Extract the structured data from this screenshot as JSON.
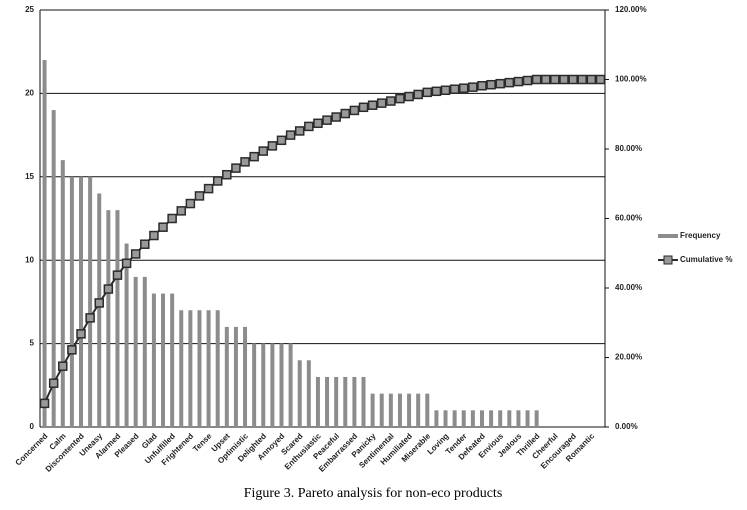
{
  "chart_data": {
    "type": "pareto",
    "caption": "Figure 3. Pareto analysis for non-eco products",
    "categories": [
      "Concerned",
      null,
      "Calm",
      null,
      "Discontented",
      null,
      "Uneasy",
      null,
      "Alarmed",
      null,
      "Pleased",
      null,
      "Glad",
      null,
      "Unfulfilled",
      null,
      "Frightened",
      null,
      "Tense",
      null,
      "Upset",
      null,
      "Optimistic",
      null,
      "Delighted",
      null,
      "Annoyed",
      null,
      "Scared",
      null,
      "Enthusiastic",
      null,
      "Peaceful",
      null,
      "Embarrassed",
      null,
      "Panicky",
      null,
      "Sentimental",
      null,
      "Humiliated",
      null,
      "Miserable",
      null,
      "Loving",
      null,
      "Tender",
      null,
      "Defeated",
      null,
      "Envious",
      null,
      "Jealous",
      null,
      "Thrilled",
      null,
      "Cheerful",
      null,
      "Encouraged",
      null,
      "Romantic",
      null
    ],
    "series": [
      {
        "name": "Frequency",
        "color": "#8c8c8c",
        "kind": "bar",
        "values": [
          22,
          19,
          16,
          15,
          15,
          15,
          14,
          13,
          13,
          11,
          9,
          9,
          8,
          8,
          8,
          7,
          7,
          7,
          7,
          7,
          6,
          6,
          6,
          5,
          5,
          5,
          5,
          5,
          4,
          4,
          3,
          3,
          3,
          3,
          3,
          3,
          2,
          2,
          2,
          2,
          2,
          2,
          2,
          1,
          1,
          1,
          1,
          1,
          1,
          1,
          1,
          1,
          1,
          1,
          1,
          0,
          0,
          0,
          0,
          0,
          0,
          0
        ]
      },
      {
        "name": "Cumulative %",
        "color": "#2b2b2b",
        "kind": "line",
        "axis": "y2",
        "values": [
          6.8,
          12.6,
          17.5,
          22.2,
          26.8,
          31.4,
          35.7,
          39.7,
          43.7,
          47.1,
          49.8,
          52.6,
          55.1,
          57.5,
          60.0,
          62.2,
          64.3,
          66.5,
          68.6,
          70.8,
          72.6,
          74.5,
          76.3,
          77.8,
          79.4,
          80.9,
          82.5,
          84.0,
          85.2,
          86.5,
          87.4,
          88.3,
          89.2,
          90.2,
          91.1,
          92.0,
          92.6,
          93.2,
          93.8,
          94.5,
          95.1,
          95.7,
          96.3,
          96.6,
          96.9,
          97.2,
          97.5,
          97.8,
          98.2,
          98.5,
          98.8,
          99.1,
          99.4,
          99.7,
          100.0,
          100.0,
          100.0,
          100.0,
          100.0,
          100.0,
          100.0,
          100.0
        ]
      }
    ],
    "ylim": [
      0,
      25
    ],
    "yticks": [
      0,
      5,
      10,
      15,
      20,
      25
    ],
    "y2lim": [
      0,
      120
    ],
    "y2ticks": [
      {
        "value": 0,
        "label": "0.00%"
      },
      {
        "value": 20,
        "label": "20.00%"
      },
      {
        "value": 40,
        "label": "40.00%"
      },
      {
        "value": 60,
        "label": "60.00%"
      },
      {
        "value": 80,
        "label": "80.00%"
      },
      {
        "value": 100,
        "label": "100.00%"
      },
      {
        "value": 120,
        "label": "120.00%"
      }
    ],
    "grid": true,
    "legend": "right"
  }
}
